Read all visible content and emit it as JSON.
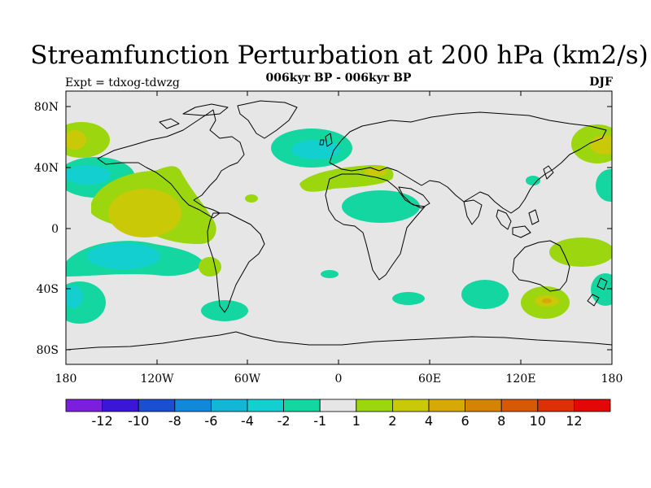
{
  "title": "Streamfunction Perturbation at 200 hPa (km2/s)",
  "subtitle": "006kyr BP - 006kyr BP",
  "expt": "Expt = tdxog-tdwzg",
  "season": "DJF",
  "lon_ticks": [
    "180",
    "120W",
    "60W",
    "0",
    "60E",
    "120E",
    "180"
  ],
  "lat_ticks": [
    "80N",
    "40N",
    "0",
    "40S",
    "80S"
  ],
  "colorbar": {
    "colors": [
      "#7b1fdc",
      "#3b16d6",
      "#1a4fcf",
      "#1388d8",
      "#14b6d8",
      "#14cfd0",
      "#14d6a0",
      "#e6e6e6",
      "#9bd60f",
      "#c9c908",
      "#d6a906",
      "#d48306",
      "#d65a06",
      "#dc3006",
      "#e20808"
    ],
    "labels": [
      "-12",
      "-10",
      "-8",
      "-6",
      "-4",
      "-2",
      "-1",
      "1",
      "2",
      "4",
      "6",
      "8",
      "10",
      "12"
    ]
  },
  "colors": {
    "background": "#e6e6e6",
    "green": "#9bd60f",
    "olive": "#c9c908",
    "teal": "#14d6a0",
    "cyan": "#14cfd0",
    "orange": "#d6a906"
  }
}
